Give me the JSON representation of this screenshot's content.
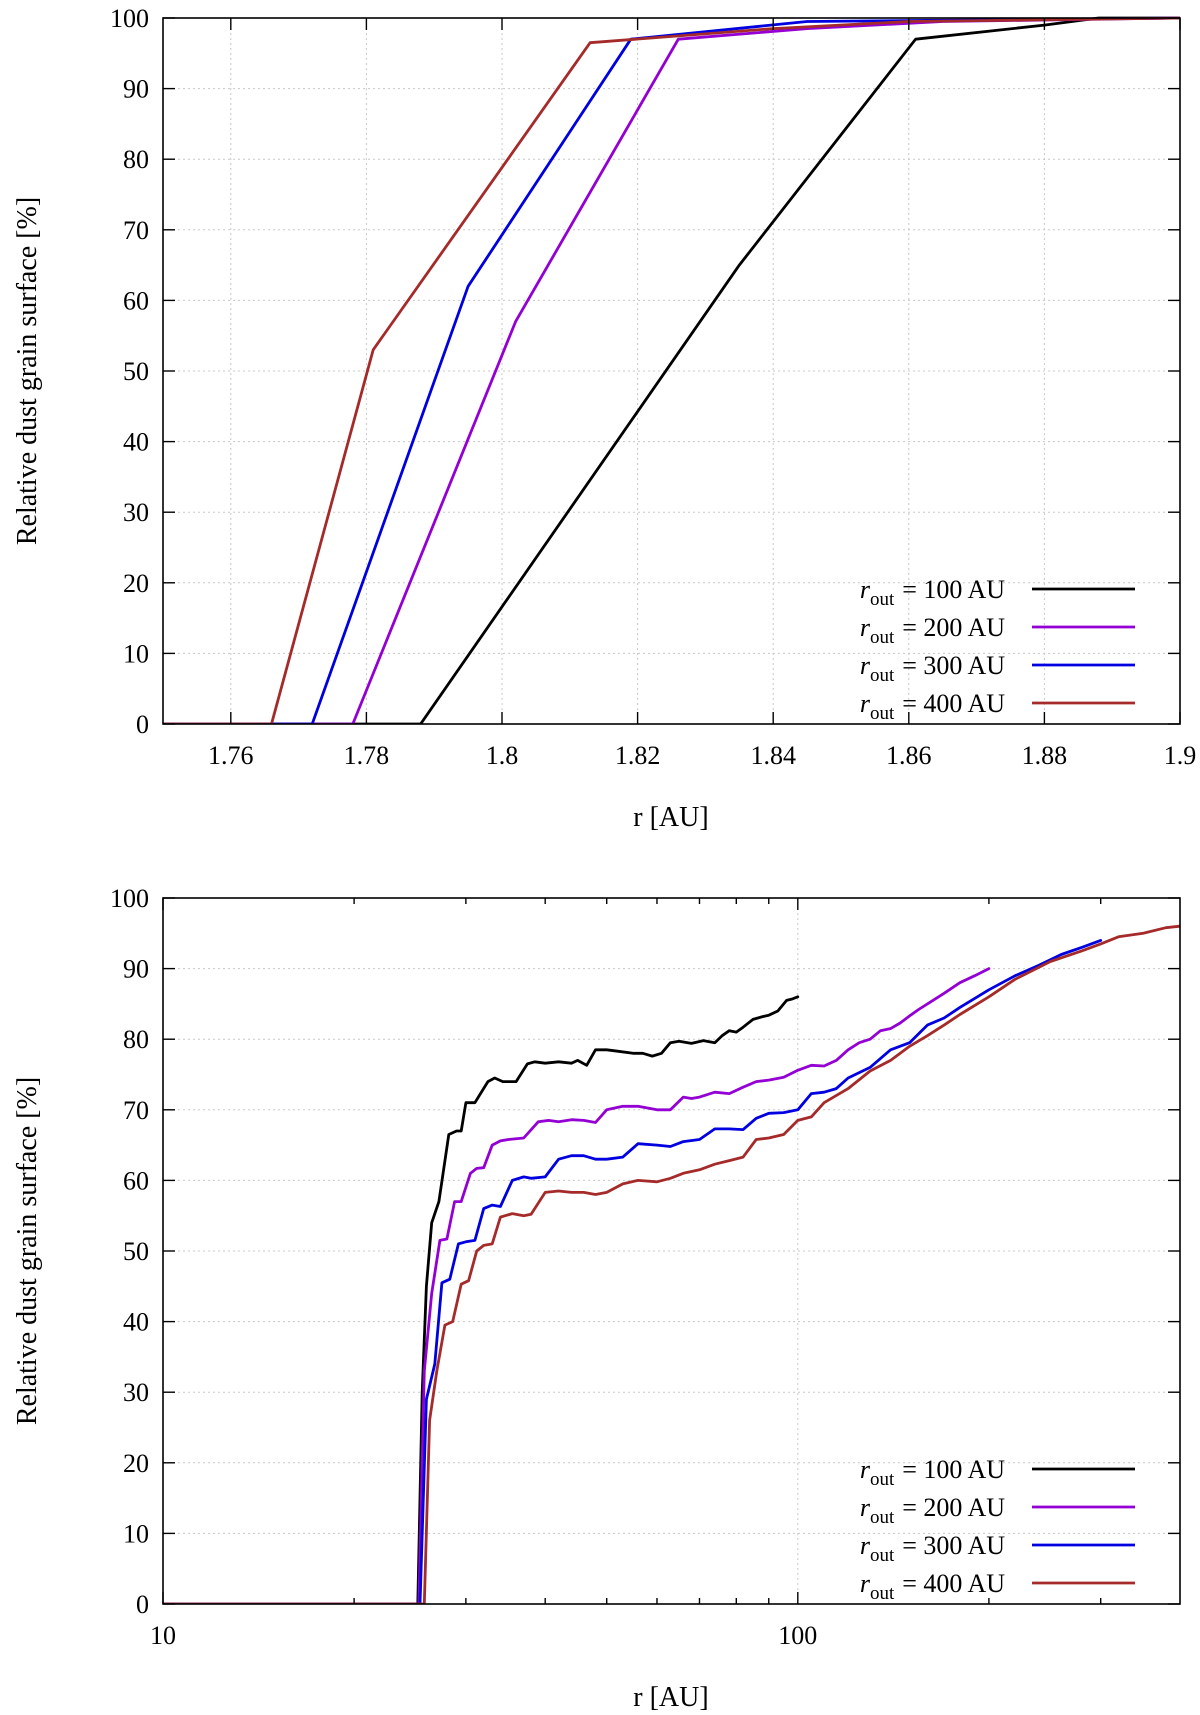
{
  "chart_data": [
    {
      "type": "line",
      "id": "top",
      "xscale": "linear",
      "xlim": [
        1.75,
        1.9
      ],
      "ylim": [
        0,
        100
      ],
      "xticks": [
        1.76,
        1.78,
        1.8,
        1.82,
        1.84,
        1.86,
        1.88,
        1.9
      ],
      "xtick_labels": [
        "1.76",
        "1.78",
        "1.8",
        "1.82",
        "1.84",
        "1.86",
        "1.88",
        "1.9"
      ],
      "yticks": [
        0,
        10,
        20,
        30,
        40,
        50,
        60,
        70,
        80,
        90,
        100
      ],
      "ytick_labels": [
        "0",
        "10",
        "20",
        "30",
        "40",
        "50",
        "60",
        "70",
        "80",
        "90",
        "100"
      ],
      "xlabel": "r [AU]",
      "ylabel": "Relative dust grain surface [%]",
      "legend_position": "bottom-right",
      "series": [
        {
          "name": "100 AU",
          "legend_prefix": "r",
          "legend_sub": "out",
          "legend_eq": "= 100 AU",
          "color": "#000000",
          "x": [
            1.75,
            1.788,
            1.835,
            1.861,
            1.88,
            1.888,
            1.9
          ],
          "y": [
            0,
            0,
            65,
            97,
            99,
            100,
            100
          ]
        },
        {
          "name": "200 AU",
          "legend_prefix": "r",
          "legend_sub": "out",
          "legend_eq": "= 200 AU",
          "color": "#9400d3",
          "x": [
            1.75,
            1.778,
            1.802,
            1.826,
            1.845,
            1.865,
            1.9
          ],
          "y": [
            0,
            0,
            57,
            97,
            98.5,
            99.5,
            100
          ]
        },
        {
          "name": "300 AU",
          "legend_prefix": "r",
          "legend_sub": "out",
          "legend_eq": "= 300 AU",
          "color": "#0000e0",
          "x": [
            1.75,
            1.772,
            1.795,
            1.819,
            1.845,
            1.9
          ],
          "y": [
            0,
            0,
            62,
            97,
            99.5,
            100
          ]
        },
        {
          "name": "400 AU",
          "legend_prefix": "r",
          "legend_sub": "out",
          "legend_eq": "= 400 AU",
          "color": "#a52a2a",
          "x": [
            1.75,
            1.766,
            1.781,
            1.813,
            1.84,
            1.86,
            1.9
          ],
          "y": [
            0,
            0,
            53,
            96.5,
            98.5,
            99.5,
            100
          ]
        }
      ]
    },
    {
      "type": "line",
      "id": "bottom",
      "xscale": "log",
      "xlim": [
        10,
        400
      ],
      "ylim": [
        0,
        100
      ],
      "xticks": [
        10,
        100
      ],
      "xtick_labels": [
        "10",
        "100"
      ],
      "yticks": [
        0,
        10,
        20,
        30,
        40,
        50,
        60,
        70,
        80,
        90,
        100
      ],
      "ytick_labels": [
        "0",
        "10",
        "20",
        "30",
        "40",
        "50",
        "60",
        "70",
        "80",
        "90",
        "100"
      ],
      "xlabel": "r [AU]",
      "ylabel": "Relative dust grain surface [%]",
      "legend_position": "bottom-right",
      "series": [
        {
          "name": "100 AU",
          "legend_prefix": "r",
          "legend_sub": "out",
          "legend_eq": "= 100 AU",
          "color": "#000000",
          "x": [
            10,
            25.2,
            25.6,
            26.0,
            26.5,
            27.2,
            28.2,
            29.0,
            29.5,
            30.0,
            31.0,
            32.5,
            33.3,
            34.3,
            36.0,
            37.5,
            38.5,
            40.0,
            42.0,
            44.0,
            45.0,
            46.5,
            48.0,
            50.0,
            52.0,
            55.0,
            57.0,
            59.0,
            61.0,
            63.0,
            65.0,
            68.0,
            71.0,
            74.0,
            76.0,
            78.0,
            80.0,
            82.0,
            85.0,
            88.0,
            90.0,
            93.0,
            96.0,
            98.0,
            100.0
          ],
          "y": [
            0,
            0,
            30,
            45,
            54,
            57,
            66.5,
            67,
            67,
            71,
            71,
            74,
            74.5,
            74,
            74,
            76.5,
            76.8,
            76.6,
            76.8,
            76.6,
            77,
            76.3,
            78.5,
            78.5,
            78.3,
            78,
            78,
            77.6,
            78,
            79.5,
            79.7,
            79.4,
            79.8,
            79.5,
            80.5,
            81.2,
            81,
            81.7,
            82.8,
            83.2,
            83.4,
            84.0,
            85.5,
            85.7,
            86.0
          ]
        },
        {
          "name": "200 AU",
          "legend_prefix": "r",
          "legend_sub": "out",
          "legend_eq": "= 200 AU",
          "color": "#9400d3",
          "x": [
            10,
            25.3,
            25.8,
            26.5,
            27.3,
            28.0,
            28.8,
            29.5,
            30.5,
            31.2,
            32.0,
            33.0,
            34.0,
            35.0,
            37.0,
            39.0,
            40.5,
            42.0,
            44.0,
            46.0,
            48.0,
            50.0,
            53.0,
            56.0,
            60.0,
            63.0,
            66.0,
            68.0,
            70.0,
            74.0,
            78.0,
            82.0,
            86.0,
            90.0,
            95.0,
            100.0,
            105.0,
            110.0,
            115.0,
            120.0,
            125.0,
            130.0,
            135.0,
            140.0,
            145.0,
            150.0,
            155.0,
            160.0,
            170.0,
            180.0,
            190.0,
            200.0
          ],
          "y": [
            0,
            0,
            33,
            44,
            51.5,
            51.7,
            57,
            57,
            61,
            61.7,
            61.8,
            65,
            65.6,
            65.8,
            66,
            68.3,
            68.5,
            68.3,
            68.6,
            68.5,
            68.2,
            70.0,
            70.5,
            70.5,
            70.0,
            70.0,
            71.8,
            71.6,
            71.8,
            72.5,
            72.3,
            73.2,
            74.0,
            74.2,
            74.6,
            75.6,
            76.3,
            76.2,
            77.0,
            78.5,
            79.5,
            80.0,
            81.2,
            81.5,
            82.3,
            83.3,
            84.2,
            85.0,
            86.5,
            88.0,
            89.0,
            90.0
          ]
        },
        {
          "name": "300 AU",
          "legend_prefix": "r",
          "legend_sub": "out",
          "legend_eq": "= 300 AU",
          "color": "#0000e0",
          "x": [
            10,
            25.4,
            26.0,
            26.8,
            27.5,
            28.3,
            29.2,
            30.0,
            31.0,
            32.0,
            33.0,
            34.0,
            35.5,
            37.0,
            38.0,
            40.0,
            42.0,
            44.0,
            46.0,
            48.0,
            50.0,
            53.0,
            56.0,
            60.0,
            63.0,
            66.0,
            70.0,
            74.0,
            78.0,
            82.0,
            86.0,
            90.0,
            95.0,
            100.0,
            105.0,
            110.0,
            115.0,
            120.0,
            130.0,
            140.0,
            150.0,
            160.0,
            170.0,
            180.0,
            200.0,
            220.0,
            240.0,
            260.0,
            280.0,
            300.0
          ],
          "y": [
            0,
            0,
            29,
            34,
            45.5,
            46,
            51,
            51.3,
            51.5,
            56,
            56.5,
            56.3,
            60,
            60.5,
            60.3,
            60.5,
            63,
            63.5,
            63.5,
            63.0,
            63.0,
            63.3,
            65.2,
            65.0,
            64.8,
            65.5,
            65.8,
            67.3,
            67.3,
            67.2,
            68.8,
            69.5,
            69.6,
            70.0,
            72.3,
            72.5,
            73.0,
            74.5,
            76.0,
            78.5,
            79.5,
            82.0,
            83.0,
            84.5,
            87.0,
            89.0,
            90.5,
            92.0,
            93.0,
            94.0
          ]
        },
        {
          "name": "400 AU",
          "legend_prefix": "r",
          "legend_sub": "out",
          "legend_eq": "= 400 AU",
          "color": "#a52a2a",
          "x": [
            10,
            25.8,
            26.3,
            27.0,
            27.8,
            28.6,
            29.5,
            30.3,
            31.2,
            32.0,
            33.0,
            34.0,
            35.5,
            37.0,
            38.0,
            40.0,
            42.0,
            44.0,
            46.0,
            48.0,
            50.0,
            53.0,
            56.0,
            60.0,
            63.0,
            66.0,
            70.0,
            74.0,
            78.0,
            82.0,
            86.0,
            90.0,
            95.0,
            100.0,
            105.0,
            110.0,
            120.0,
            130.0,
            140.0,
            150.0,
            160.0,
            170.0,
            180.0,
            200.0,
            220.0,
            250.0,
            280.0,
            300.0,
            320.0,
            350.0,
            380.0,
            400.0
          ],
          "y": [
            0,
            0,
            26,
            33,
            39.5,
            40,
            45.3,
            45.8,
            50,
            50.8,
            51,
            54.8,
            55.3,
            55.0,
            55.2,
            58.3,
            58.5,
            58.3,
            58.3,
            58.0,
            58.3,
            59.5,
            60.0,
            59.8,
            60.3,
            61.0,
            61.5,
            62.3,
            62.8,
            63.3,
            65.8,
            66.0,
            66.5,
            68.5,
            69.0,
            71.0,
            73.0,
            75.5,
            77.0,
            79.0,
            80.5,
            82.0,
            83.5,
            86.0,
            88.5,
            91.0,
            92.5,
            93.5,
            94.5,
            95.0,
            95.8,
            96.0
          ]
        }
      ]
    }
  ]
}
